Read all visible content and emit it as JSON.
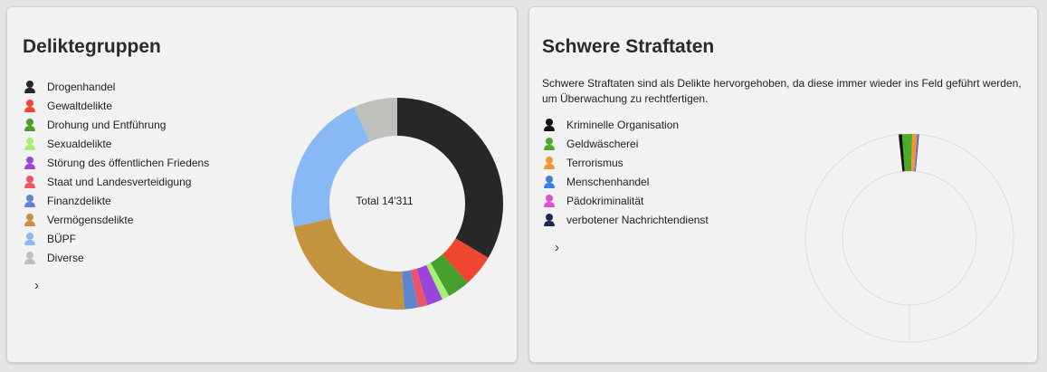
{
  "left_card": {
    "title": "Deliktegruppen",
    "center_label": "Total 14'311",
    "legend": [
      {
        "label": "Drogenhandel",
        "color": "#272727"
      },
      {
        "label": "Gewaltdelikte",
        "color": "#ee4630"
      },
      {
        "label": "Drohung und Entführung",
        "color": "#47a02c"
      },
      {
        "label": "Sexualdelikte",
        "color": "#a6f07a"
      },
      {
        "label": "Störung des öffentlichen Friedens",
        "color": "#9b46d8"
      },
      {
        "label": "Staat und Landesverteidigung",
        "color": "#ed5565"
      },
      {
        "label": "Finanzdelikte",
        "color": "#5f85d1"
      },
      {
        "label": "Vermögensdelikte",
        "color": "#c3943d"
      },
      {
        "label": "BÜPF",
        "color": "#89b9f5"
      },
      {
        "label": "Diverse",
        "color": "#bdc0bb"
      }
    ],
    "chevron_icon": "chevron-right-icon"
  },
  "right_card": {
    "title": "Schwere Straftaten",
    "description": "Schwere Straftaten sind als Delikte hervorgehoben, da diese immer wieder ins Feld geführt werden, um Überwachung zu rechtfertigen.",
    "legend": [
      {
        "label": "Kriminelle Organisation",
        "color": "#111111"
      },
      {
        "label": "Geldwäscherei",
        "color": "#4daa2a"
      },
      {
        "label": "Terrorismus",
        "color": "#f2962e"
      },
      {
        "label": "Menschenhandel",
        "color": "#3d7fe0"
      },
      {
        "label": "Pädokriminalität",
        "color": "#e04ed3"
      },
      {
        "label": "verbotener Nachrichtendienst",
        "color": "#1b2a52"
      }
    ],
    "chevron_icon": "chevron-right-icon"
  },
  "chart_data": [
    {
      "type": "pie",
      "title": "Deliktegruppen",
      "center_label": "Total 14'311",
      "total": 14311,
      "categories": [
        "Drogenhandel",
        "Gewaltdelikte",
        "Drohung und Entführung",
        "Sexualdelikte",
        "Störung des öffentlichen Friedens",
        "Staat und Landesverteidigung",
        "Finanzdelikte",
        "Vermögensdelikte",
        "BÜPF",
        "Diverse"
      ],
      "values": [
        4800,
        700,
        490,
        160,
        350,
        200,
        300,
        3230,
        3120,
        960
      ],
      "colors": [
        "#272727",
        "#ee4630",
        "#47a02c",
        "#a6f07a",
        "#9b46d8",
        "#ed5565",
        "#5f85d1",
        "#c3943d",
        "#89b9f5",
        "#bdc0bb"
      ],
      "legend": "left"
    },
    {
      "type": "pie",
      "title": "Schwere Straftaten",
      "categories": [
        "Kriminelle Organisation",
        "Geldwäscherei",
        "Terrorismus",
        "Menschenhandel",
        "Pädokriminalität",
        "verbotener Nachrichtendienst"
      ],
      "values": [
        77,
        222,
        104,
        19,
        14,
        14
      ],
      "colors": [
        "#111111",
        "#4daa2a",
        "#f2962e",
        "#3d7fe0",
        "#e04ed3",
        "#1b2a52"
      ],
      "scale_total": 14311,
      "legend": "left"
    }
  ]
}
